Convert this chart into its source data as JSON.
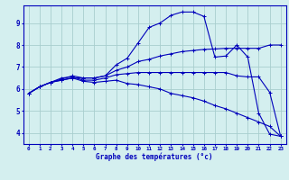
{
  "title": "Graphe des températures (°c)",
  "background_color": "#d4efef",
  "grid_color": "#a8cece",
  "line_color": "#0000bb",
  "xlim": [
    -0.5,
    23.5
  ],
  "ylim": [
    3.5,
    9.8
  ],
  "x_ticks": [
    0,
    1,
    2,
    3,
    4,
    5,
    6,
    7,
    8,
    9,
    10,
    11,
    12,
    13,
    14,
    15,
    16,
    17,
    18,
    19,
    20,
    21,
    22,
    23
  ],
  "y_ticks": [
    4,
    5,
    6,
    7,
    8,
    9
  ],
  "line1_x": [
    0,
    1,
    2,
    3,
    4,
    5,
    6,
    7,
    8,
    9,
    10,
    11,
    12,
    13,
    14,
    15,
    16,
    17,
    18,
    19,
    20,
    21,
    22,
    23
  ],
  "line1_y": [
    5.8,
    6.1,
    6.3,
    6.4,
    6.5,
    6.5,
    6.5,
    6.6,
    6.85,
    7.0,
    7.25,
    7.35,
    7.5,
    7.6,
    7.7,
    7.75,
    7.8,
    7.82,
    7.85,
    7.85,
    7.85,
    7.85,
    8.0,
    8.0
  ],
  "line2_x": [
    0,
    1,
    2,
    3,
    4,
    5,
    6,
    7,
    8,
    9,
    10,
    11,
    12,
    13,
    14,
    15,
    16,
    17,
    18,
    19,
    20,
    21,
    22,
    23
  ],
  "line2_y": [
    5.8,
    6.1,
    6.3,
    6.45,
    6.6,
    6.5,
    6.5,
    6.6,
    7.1,
    7.4,
    8.1,
    8.8,
    9.0,
    9.35,
    9.5,
    9.5,
    9.3,
    7.45,
    7.5,
    8.0,
    7.45,
    4.9,
    3.95,
    3.85
  ],
  "line3_x": [
    0,
    1,
    2,
    3,
    4,
    5,
    6,
    7,
    8,
    9,
    10,
    11,
    12,
    13,
    14,
    15,
    16,
    17,
    18,
    19,
    20,
    21,
    22,
    23
  ],
  "line3_y": [
    5.8,
    6.1,
    6.3,
    6.5,
    6.55,
    6.4,
    6.4,
    6.5,
    6.65,
    6.7,
    6.75,
    6.75,
    6.75,
    6.75,
    6.75,
    6.75,
    6.75,
    6.75,
    6.75,
    6.6,
    6.55,
    6.55,
    5.85,
    3.85
  ],
  "line4_x": [
    0,
    1,
    2,
    3,
    4,
    5,
    6,
    7,
    8,
    9,
    10,
    11,
    12,
    13,
    14,
    15,
    16,
    17,
    18,
    19,
    20,
    21,
    22,
    23
  ],
  "line4_y": [
    5.8,
    6.1,
    6.3,
    6.4,
    6.5,
    6.35,
    6.3,
    6.35,
    6.4,
    6.25,
    6.2,
    6.1,
    6.0,
    5.8,
    5.7,
    5.6,
    5.45,
    5.25,
    5.1,
    4.9,
    4.7,
    4.5,
    4.3,
    3.85
  ]
}
